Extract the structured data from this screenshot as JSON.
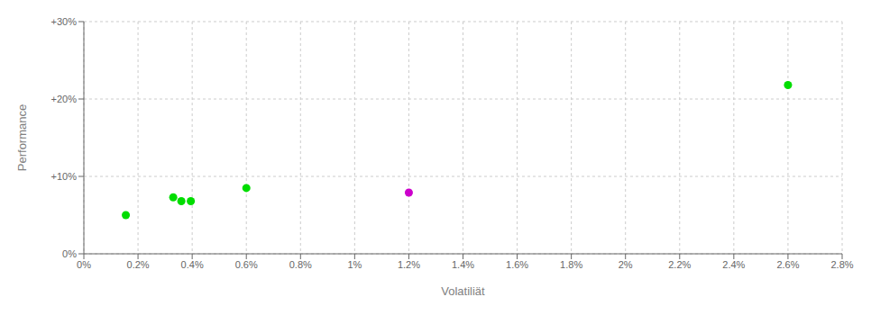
{
  "chart_data": {
    "type": "scatter",
    "xlabel": "Volatiliät",
    "ylabel": "Performance",
    "xlim": [
      0,
      0.028
    ],
    "ylim": [
      0,
      0.3
    ],
    "xticks": [
      {
        "value": 0,
        "label": "0%"
      },
      {
        "value": 0.002,
        "label": "0.2%"
      },
      {
        "value": 0.004,
        "label": "0.4%"
      },
      {
        "value": 0.006,
        "label": "0.6%"
      },
      {
        "value": 0.008,
        "label": "0.8%"
      },
      {
        "value": 0.01,
        "label": "1%"
      },
      {
        "value": 0.012,
        "label": "1.2%"
      },
      {
        "value": 0.014,
        "label": "1.4%"
      },
      {
        "value": 0.016,
        "label": "1.6%"
      },
      {
        "value": 0.018,
        "label": "1.8%"
      },
      {
        "value": 0.02,
        "label": "2%"
      },
      {
        "value": 0.022,
        "label": "2.2%"
      },
      {
        "value": 0.024,
        "label": "2.4%"
      },
      {
        "value": 0.026,
        "label": "2.6%"
      },
      {
        "value": 0.028,
        "label": "2.8%"
      }
    ],
    "yticks": [
      {
        "value": 0,
        "label": "0%"
      },
      {
        "value": 0.1,
        "label": "+10%"
      },
      {
        "value": 0.2,
        "label": "+20%"
      },
      {
        "value": 0.3,
        "label": "+30%"
      }
    ],
    "grid": true,
    "series": [
      {
        "color": "#00dd00",
        "x": [
          0.00155,
          0.0033,
          0.0036,
          0.00395,
          0.006,
          0.026
        ],
        "values": [
          0.05,
          0.073,
          0.068,
          0.068,
          0.085,
          0.218
        ]
      },
      {
        "color": "#cc00cc",
        "x": [
          0.012
        ],
        "values": [
          0.079
        ]
      }
    ]
  }
}
